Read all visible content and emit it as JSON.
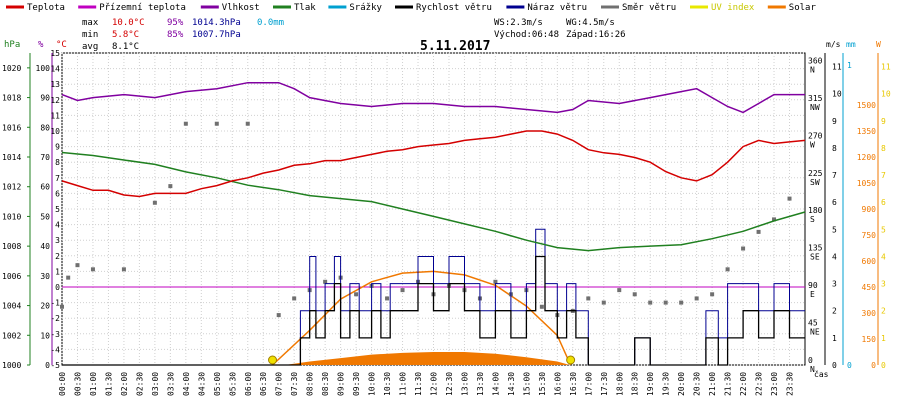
{
  "chart_data": {
    "type": "line",
    "title": "5.11.2017",
    "legend": [
      {
        "key": "temp",
        "label": "Teplota",
        "color": "#d40000"
      },
      {
        "key": "felt",
        "label": "Přízemní teplota",
        "color": "#c000c0"
      },
      {
        "key": "hum",
        "label": "Vlhkost",
        "color": "#8000a0"
      },
      {
        "key": "press",
        "label": "Tlak",
        "color": "#208020"
      },
      {
        "key": "rain",
        "label": "Srážky",
        "color": "#00a0d0"
      },
      {
        "key": "wind",
        "label": "Rychlost větru",
        "color": "#000000"
      },
      {
        "key": "gust",
        "label": "Náraz větru",
        "color": "#000090"
      },
      {
        "key": "dir",
        "label": "Směr větru",
        "color": "#707070"
      },
      {
        "key": "uv",
        "label": "UV index",
        "color": "#e8e800"
      },
      {
        "key": "solar",
        "label": "Solar",
        "color": "#f07800"
      }
    ],
    "stats": {
      "max_label": "max",
      "max_temp": "10.0°C",
      "max_hum": "95%",
      "max_press": "1014.3hPa",
      "max_rain": "0.0mm",
      "min_label": "min",
      "min_temp": "5.8°C",
      "min_hum": "85%",
      "min_press": "1007.7hPa",
      "avg_label": "avg",
      "avg_temp": "8.1°C"
    },
    "wind_info": {
      "ws": "WS:2.3m/s",
      "wg": "WG:4.5m/s",
      "sunrise": "Východ:06:48",
      "sunset": "Západ:16:26"
    },
    "axes": {
      "hpa": {
        "unit": "hPa",
        "ticks": [
          1000,
          1002,
          1004,
          1006,
          1008,
          1010,
          1012,
          1014,
          1016,
          1018,
          1020
        ]
      },
      "pct": {
        "unit": "%",
        "ticks": [
          0,
          10,
          20,
          30,
          40,
          50,
          60,
          70,
          80,
          90,
          100
        ]
      },
      "temp": {
        "unit": "°C",
        "ticks": [
          -5,
          -4,
          -3,
          -2,
          -1,
          0,
          1,
          2,
          3,
          4,
          5,
          6,
          7,
          8,
          9,
          10,
          11,
          12,
          13,
          14,
          15
        ]
      },
      "dir": {
        "unit": "°",
        "ticks": [
          {
            "v": 0,
            "l": "0",
            "d": "N"
          },
          {
            "v": 45,
            "l": "45",
            "d": "NE"
          },
          {
            "v": 90,
            "l": "90",
            "d": "E"
          },
          {
            "v": 135,
            "l": "135",
            "d": "SE"
          },
          {
            "v": 180,
            "l": "180",
            "d": "S"
          },
          {
            "v": 225,
            "l": "225",
            "d": "SW"
          },
          {
            "v": 270,
            "l": "270",
            "d": "W"
          },
          {
            "v": 315,
            "l": "315",
            "d": "NW"
          },
          {
            "v": 360,
            "l": "360",
            "d": "N"
          }
        ]
      },
      "ms": {
        "unit": "m/s",
        "ticks": [
          0,
          1,
          2,
          3,
          4,
          5,
          6,
          7,
          8,
          9,
          10,
          11
        ]
      },
      "mm": {
        "unit": "mm",
        "ticks": [
          0,
          1
        ]
      },
      "w": {
        "unit": "W",
        "ticks": [
          0,
          150,
          300,
          450,
          600,
          750,
          900,
          1050,
          1200,
          1350,
          1500
        ]
      },
      "time": {
        "unit": "čas",
        "ticks": [
          "00:00",
          "00:30",
          "01:00",
          "01:30",
          "02:00",
          "02:30",
          "03:00",
          "03:30",
          "04:00",
          "04:30",
          "05:00",
          "05:30",
          "06:00",
          "06:30",
          "07:00",
          "07:30",
          "08:00",
          "08:30",
          "09:00",
          "09:30",
          "10:00",
          "10:30",
          "11:00",
          "11:30",
          "12:00",
          "12:30",
          "13:00",
          "13:30",
          "14:00",
          "14:30",
          "15:00",
          "15:30",
          "16:00",
          "16:30",
          "17:00",
          "17:30",
          "18:00",
          "18:30",
          "19:00",
          "19:30",
          "20:00",
          "20:30",
          "21:00",
          "21:30",
          "22:00",
          "22:30",
          "23:00",
          "23:30"
        ]
      }
    },
    "series": {
      "temp": [
        [
          0,
          6.8
        ],
        [
          0.5,
          6.5
        ],
        [
          1,
          6.2
        ],
        [
          1.5,
          6.2
        ],
        [
          2,
          5.9
        ],
        [
          2.5,
          5.8
        ],
        [
          3,
          6.0
        ],
        [
          3.5,
          6.0
        ],
        [
          4,
          6.0
        ],
        [
          4.5,
          6.3
        ],
        [
          5,
          6.5
        ],
        [
          5.5,
          6.8
        ],
        [
          6,
          7.0
        ],
        [
          6.5,
          7.3
        ],
        [
          7,
          7.5
        ],
        [
          7.5,
          7.8
        ],
        [
          8,
          7.9
        ],
        [
          8.5,
          8.1
        ],
        [
          9,
          8.1
        ],
        [
          9.5,
          8.3
        ],
        [
          10,
          8.5
        ],
        [
          10.5,
          8.7
        ],
        [
          11,
          8.8
        ],
        [
          11.5,
          9.0
        ],
        [
          12,
          9.1
        ],
        [
          12.5,
          9.2
        ],
        [
          13,
          9.4
        ],
        [
          13.5,
          9.5
        ],
        [
          14,
          9.6
        ],
        [
          14.5,
          9.8
        ],
        [
          15,
          10.0
        ],
        [
          15.5,
          10.0
        ],
        [
          16,
          9.8
        ],
        [
          16.5,
          9.4
        ],
        [
          17,
          8.8
        ],
        [
          17.5,
          8.6
        ],
        [
          18,
          8.5
        ],
        [
          18.5,
          8.3
        ],
        [
          19,
          8.0
        ],
        [
          19.5,
          7.4
        ],
        [
          20,
          7.0
        ],
        [
          20.5,
          6.8
        ],
        [
          21,
          7.2
        ],
        [
          21.5,
          8.0
        ],
        [
          22,
          9.0
        ],
        [
          22.5,
          9.4
        ],
        [
          23,
          9.2
        ],
        [
          23.5,
          9.3
        ],
        [
          24,
          9.4
        ]
      ],
      "hum": [
        [
          0,
          91
        ],
        [
          0.5,
          89
        ],
        [
          1,
          90
        ],
        [
          2,
          91
        ],
        [
          3,
          90
        ],
        [
          4,
          92
        ],
        [
          5,
          93
        ],
        [
          6,
          95
        ],
        [
          7,
          95
        ],
        [
          7.5,
          93
        ],
        [
          8,
          90
        ],
        [
          9,
          88
        ],
        [
          10,
          87
        ],
        [
          11,
          88
        ],
        [
          12,
          88
        ],
        [
          13,
          87
        ],
        [
          14,
          87
        ],
        [
          15,
          86
        ],
        [
          16,
          85
        ],
        [
          16.5,
          86
        ],
        [
          17,
          89
        ],
        [
          18,
          88
        ],
        [
          19,
          90
        ],
        [
          19.5,
          91
        ],
        [
          20,
          92
        ],
        [
          20.5,
          93
        ],
        [
          21,
          90
        ],
        [
          21.5,
          87
        ],
        [
          22,
          85
        ],
        [
          22.5,
          88
        ],
        [
          23,
          91
        ],
        [
          24,
          91
        ]
      ],
      "press": [
        [
          0,
          1014.3
        ],
        [
          1,
          1014.1
        ],
        [
          2,
          1013.8
        ],
        [
          3,
          1013.5
        ],
        [
          4,
          1013.0
        ],
        [
          5,
          1012.6
        ],
        [
          6,
          1012.1
        ],
        [
          7,
          1011.8
        ],
        [
          8,
          1011.4
        ],
        [
          9,
          1011.2
        ],
        [
          10,
          1011.0
        ],
        [
          11,
          1010.5
        ],
        [
          12,
          1010.0
        ],
        [
          13,
          1009.5
        ],
        [
          14,
          1009.0
        ],
        [
          15,
          1008.4
        ],
        [
          16,
          1007.9
        ],
        [
          17,
          1007.7
        ],
        [
          18,
          1007.9
        ],
        [
          19,
          1008.0
        ],
        [
          20,
          1008.1
        ],
        [
          21,
          1008.5
        ],
        [
          22,
          1009.0
        ],
        [
          23,
          1009.7
        ],
        [
          24,
          1010.3
        ]
      ],
      "wind": [
        [
          0,
          0
        ],
        [
          7.5,
          0
        ],
        [
          7.7,
          1
        ],
        [
          8,
          2
        ],
        [
          8.2,
          1
        ],
        [
          8.5,
          2
        ],
        [
          8.8,
          3
        ],
        [
          9,
          1
        ],
        [
          9.3,
          2
        ],
        [
          9.6,
          1
        ],
        [
          10,
          2
        ],
        [
          10.3,
          1
        ],
        [
          10.6,
          2
        ],
        [
          11,
          2
        ],
        [
          11.5,
          3
        ],
        [
          12,
          2
        ],
        [
          12.5,
          3
        ],
        [
          13,
          2
        ],
        [
          13.5,
          1
        ],
        [
          14,
          2
        ],
        [
          14.5,
          1
        ],
        [
          15,
          2
        ],
        [
          15.3,
          4
        ],
        [
          15.6,
          2
        ],
        [
          16,
          1
        ],
        [
          16.3,
          2
        ],
        [
          16.6,
          1
        ],
        [
          17,
          0
        ],
        [
          18,
          0
        ],
        [
          18.5,
          1
        ],
        [
          19,
          0
        ],
        [
          20.5,
          0
        ],
        [
          20.8,
          1
        ],
        [
          21.2,
          0
        ],
        [
          21.5,
          1
        ],
        [
          22,
          2
        ],
        [
          22.5,
          1
        ],
        [
          23,
          2
        ],
        [
          23.5,
          1
        ],
        [
          24,
          1
        ]
      ],
      "gust": [
        [
          0,
          0
        ],
        [
          7.5,
          0
        ],
        [
          7.7,
          2
        ],
        [
          8,
          4
        ],
        [
          8.2,
          2
        ],
        [
          8.5,
          3
        ],
        [
          8.8,
          4
        ],
        [
          9,
          2
        ],
        [
          9.3,
          3
        ],
        [
          9.6,
          2
        ],
        [
          10,
          3
        ],
        [
          10.3,
          2
        ],
        [
          10.6,
          3
        ],
        [
          11,
          3
        ],
        [
          11.5,
          4
        ],
        [
          12,
          3
        ],
        [
          12.5,
          4
        ],
        [
          13,
          3
        ],
        [
          13.5,
          2
        ],
        [
          14,
          3
        ],
        [
          14.5,
          2
        ],
        [
          15,
          3
        ],
        [
          15.3,
          5
        ],
        [
          15.6,
          3
        ],
        [
          16,
          2
        ],
        [
          16.3,
          3
        ],
        [
          16.6,
          2
        ],
        [
          17,
          0
        ],
        [
          18,
          0
        ],
        [
          18.5,
          1
        ],
        [
          19,
          0
        ],
        [
          20.5,
          0
        ],
        [
          20.8,
          2
        ],
        [
          21.2,
          1
        ],
        [
          21.5,
          3
        ],
        [
          22,
          3
        ],
        [
          22.5,
          2
        ],
        [
          23,
          3
        ],
        [
          23.5,
          2
        ],
        [
          24,
          2
        ]
      ],
      "dir": [
        [
          0,
          70
        ],
        [
          0.2,
          105
        ],
        [
          0.5,
          120
        ],
        [
          1,
          115
        ],
        [
          2,
          115
        ],
        [
          3,
          195
        ],
        [
          3.5,
          215
        ],
        [
          4,
          290
        ],
        [
          5,
          290
        ],
        [
          6,
          290
        ],
        [
          7,
          60
        ],
        [
          7.5,
          80
        ],
        [
          8,
          90
        ],
        [
          8.5,
          100
        ],
        [
          9,
          105
        ],
        [
          9.5,
          85
        ],
        [
          10,
          95
        ],
        [
          10.5,
          80
        ],
        [
          11,
          90
        ],
        [
          11.5,
          100
        ],
        [
          12,
          85
        ],
        [
          12.5,
          95
        ],
        [
          13,
          90
        ],
        [
          13.5,
          80
        ],
        [
          14,
          100
        ],
        [
          14.5,
          85
        ],
        [
          15,
          90
        ],
        [
          15.5,
          70
        ],
        [
          16,
          60
        ],
        [
          16.5,
          65
        ],
        [
          17,
          80
        ],
        [
          17.5,
          75
        ],
        [
          18,
          90
        ],
        [
          18.5,
          85
        ],
        [
          19,
          75
        ],
        [
          19.5,
          75
        ],
        [
          20,
          75
        ],
        [
          20.5,
          80
        ],
        [
          21,
          85
        ],
        [
          21.5,
          115
        ],
        [
          22,
          140
        ],
        [
          22.5,
          160
        ],
        [
          23,
          175
        ],
        [
          23.5,
          200
        ]
      ],
      "solar_curve": [
        [
          6.8,
          0
        ],
        [
          8,
          200
        ],
        [
          9,
          380
        ],
        [
          10,
          480
        ],
        [
          11,
          530
        ],
        [
          12,
          540
        ],
        [
          13,
          520
        ],
        [
          14,
          460
        ],
        [
          15,
          340
        ],
        [
          16,
          170
        ],
        [
          16.43,
          0
        ]
      ],
      "solar_fill": [
        [
          7.2,
          0
        ],
        [
          8,
          20
        ],
        [
          9,
          40
        ],
        [
          10,
          60
        ],
        [
          11,
          70
        ],
        [
          12,
          75
        ],
        [
          13,
          75
        ],
        [
          14,
          65
        ],
        [
          15,
          45
        ],
        [
          16,
          20
        ],
        [
          16.4,
          0
        ]
      ]
    },
    "sun_markers": [
      6.8,
      16.43
    ]
  }
}
